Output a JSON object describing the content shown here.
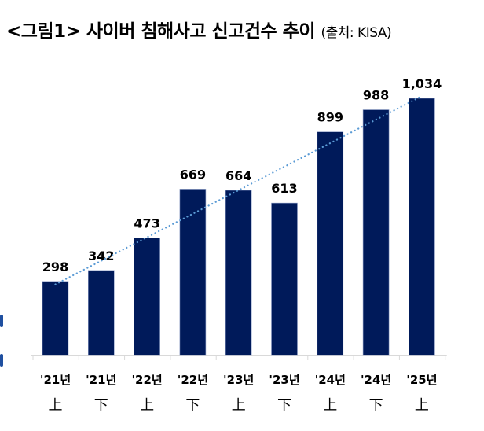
{
  "title": {
    "main": "<그림1> 사이버 침해사고 신고건수 추이",
    "source": "(출처: KISA)"
  },
  "chart_data": {
    "type": "bar",
    "title": "<그림1> 사이버 침해사고 신고건수 추이 (출처: KISA)",
    "categories": [
      "'21년 上",
      "'21년 下",
      "'22년 上",
      "'22년 下",
      "'23년 上",
      "'23년 下",
      "'24년 上",
      "'24년 下",
      "'25년 上"
    ],
    "category_lines": [
      [
        "'21년",
        "上"
      ],
      [
        "'21년",
        "下"
      ],
      [
        "'22년",
        "上"
      ],
      [
        "'22년",
        "下"
      ],
      [
        "'23년",
        "上"
      ],
      [
        "'23년",
        "下"
      ],
      [
        "'24년",
        "上"
      ],
      [
        "'24년",
        "下"
      ],
      [
        "'25년",
        "上"
      ]
    ],
    "values": [
      298,
      342,
      473,
      669,
      664,
      613,
      899,
      988,
      1034
    ],
    "value_labels": [
      "298",
      "342",
      "473",
      "669",
      "664",
      "613",
      "899",
      "988",
      "1,034"
    ],
    "trendline": {
      "type": "linear",
      "style": "dotted",
      "color": "#5b9bd5"
    },
    "xlabel": "",
    "ylabel": "",
    "ylim": [
      0,
      1034
    ],
    "grid": false,
    "legend": null,
    "bar_color": "#001a5a"
  }
}
